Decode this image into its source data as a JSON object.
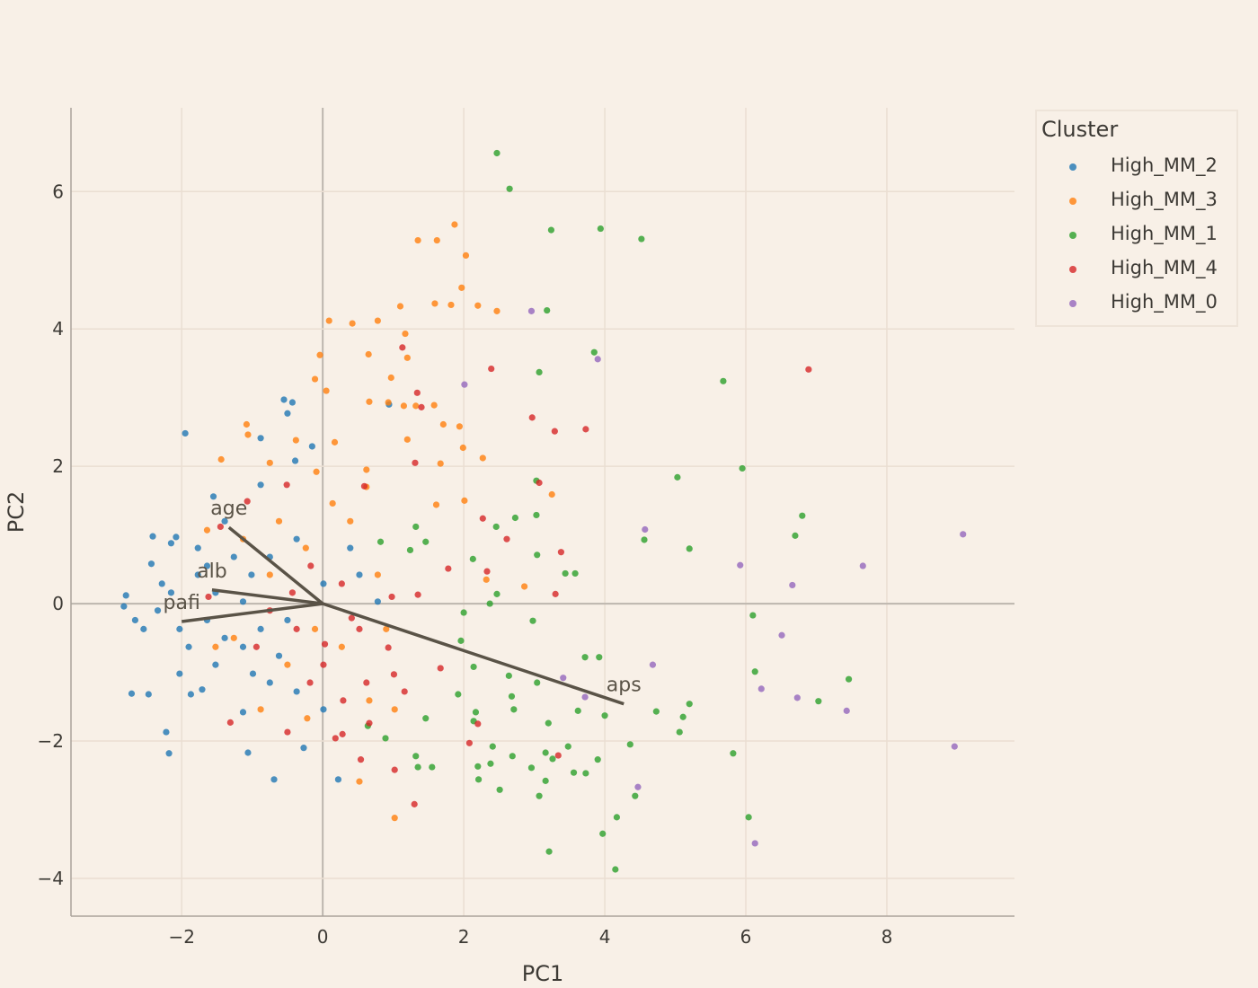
{
  "chart_data": {
    "type": "scatter",
    "xlabel": "PC1",
    "ylabel": "PC2",
    "xlim": [
      -3.57,
      9.81
    ],
    "ylim": [
      -4.55,
      7.22
    ],
    "xticks": [
      -2,
      0,
      2,
      4,
      6,
      8
    ],
    "yticks": [
      -4,
      -2,
      0,
      2,
      4,
      6
    ],
    "grid": true,
    "legend": {
      "title": "Cluster",
      "placement": "right"
    },
    "series": [
      {
        "name": "High_MM_2",
        "color": "#1f77b4",
        "points": [
          [
            -1.95,
            2.48
          ],
          [
            -0.88,
            2.41
          ],
          [
            -0.55,
            2.97
          ],
          [
            -0.43,
            2.93
          ],
          [
            -0.5,
            2.77
          ],
          [
            -0.15,
            2.29
          ],
          [
            -0.39,
            2.08
          ],
          [
            0.94,
            2.9
          ],
          [
            -1.55,
            1.56
          ],
          [
            -2.41,
            0.98
          ],
          [
            -2.08,
            0.97
          ],
          [
            -2.15,
            0.88
          ],
          [
            -2.43,
            0.58
          ],
          [
            -2.79,
            0.12
          ],
          [
            -2.82,
            -0.04
          ],
          [
            -2.71,
            -1.31
          ],
          [
            -2.47,
            -1.32
          ],
          [
            -2.22,
            -1.87
          ],
          [
            -2.18,
            -2.18
          ],
          [
            -1.06,
            -2.17
          ],
          [
            -0.69,
            -2.56
          ],
          [
            0.22,
            -2.56
          ],
          [
            -0.27,
            -2.1
          ],
          [
            -1.13,
            -1.58
          ],
          [
            -1.87,
            -1.32
          ],
          [
            -1.71,
            -1.25
          ],
          [
            -0.37,
            0.94
          ],
          [
            -0.88,
            1.73
          ],
          [
            -1.26,
            0.68
          ],
          [
            -1.77,
            0.42
          ],
          [
            -2.15,
            0.16
          ],
          [
            -2.34,
            -0.1
          ],
          [
            -2.03,
            -0.37
          ],
          [
            -1.64,
            -0.24
          ],
          [
            -1.39,
            -0.5
          ],
          [
            -1.13,
            0.03
          ],
          [
            -0.88,
            -0.37
          ],
          [
            -0.62,
            -0.76
          ],
          [
            -0.99,
            -1.02
          ],
          [
            -0.37,
            -1.28
          ],
          [
            0.01,
            -1.54
          ],
          [
            -1.52,
            -0.89
          ],
          [
            -1.9,
            -0.63
          ],
          [
            -2.54,
            -0.37
          ],
          [
            -2.28,
            0.29
          ],
          [
            -1.52,
            0.16
          ],
          [
            -0.75,
            0.68
          ],
          [
            -1.39,
            1.2
          ],
          [
            -1.77,
            0.81
          ],
          [
            -1.01,
            0.42
          ],
          [
            -0.5,
            -0.24
          ],
          [
            0.01,
            0.29
          ],
          [
            0.52,
            0.42
          ],
          [
            0.78,
            0.03
          ],
          [
            0.39,
            0.81
          ],
          [
            -1.13,
            -0.63
          ],
          [
            -2.03,
            -1.02
          ],
          [
            -2.66,
            -0.24
          ],
          [
            -1.64,
            0.55
          ],
          [
            -0.75,
            -1.15
          ]
        ]
      },
      {
        "name": "High_MM_3",
        "color": "#ff7f0e",
        "points": [
          [
            1.87,
            5.52
          ],
          [
            1.35,
            5.29
          ],
          [
            1.62,
            5.29
          ],
          [
            2.03,
            5.07
          ],
          [
            1.97,
            4.6
          ],
          [
            1.1,
            4.33
          ],
          [
            1.59,
            4.37
          ],
          [
            1.82,
            4.35
          ],
          [
            2.2,
            4.34
          ],
          [
            2.47,
            4.26
          ],
          [
            1.17,
            3.93
          ],
          [
            0.09,
            4.12
          ],
          [
            0.42,
            4.08
          ],
          [
            0.78,
            4.12
          ],
          [
            -0.04,
            3.62
          ],
          [
            0.65,
            3.63
          ],
          [
            1.2,
            3.58
          ],
          [
            0.97,
            3.29
          ],
          [
            -0.11,
            3.27
          ],
          [
            0.05,
            3.1
          ],
          [
            0.66,
            2.94
          ],
          [
            0.93,
            2.93
          ],
          [
            1.15,
            2.88
          ],
          [
            1.32,
            2.88
          ],
          [
            1.58,
            2.89
          ],
          [
            1.71,
            2.61
          ],
          [
            1.94,
            2.58
          ],
          [
            -1.08,
            2.61
          ],
          [
            -1.06,
            2.46
          ],
          [
            -1.44,
            2.1
          ],
          [
            1.2,
            2.39
          ],
          [
            1.99,
            2.27
          ],
          [
            2.27,
            2.12
          ],
          [
            1.67,
            2.04
          ],
          [
            0.17,
            2.35
          ],
          [
            0.62,
            1.95
          ],
          [
            -0.09,
            1.92
          ],
          [
            2.01,
            1.5
          ],
          [
            3.25,
            1.59
          ],
          [
            1.61,
            1.44
          ],
          [
            0.62,
            1.7
          ],
          [
            -0.75,
            2.05
          ],
          [
            -0.38,
            2.38
          ],
          [
            2.86,
            0.25
          ],
          [
            2.32,
            0.35
          ],
          [
            0.52,
            -2.59
          ],
          [
            1.02,
            -3.12
          ],
          [
            -0.22,
            -1.67
          ],
          [
            -0.88,
            -1.54
          ],
          [
            0.66,
            -1.41
          ],
          [
            1.02,
            -1.54
          ],
          [
            -0.5,
            -0.89
          ],
          [
            0.27,
            -0.63
          ],
          [
            -1.64,
            1.07
          ],
          [
            -1.13,
            0.94
          ],
          [
            -0.24,
            0.81
          ],
          [
            0.39,
            1.2
          ],
          [
            0.78,
            0.42
          ],
          [
            -0.75,
            0.42
          ],
          [
            -0.11,
            -0.37
          ],
          [
            -1.26,
            -0.5
          ],
          [
            0.14,
            1.46
          ],
          [
            -0.62,
            1.2
          ],
          [
            -1.52,
            -0.63
          ],
          [
            0.9,
            -0.37
          ]
        ]
      },
      {
        "name": "High_MM_1",
        "color": "#2ca02c",
        "points": [
          [
            2.47,
            6.56
          ],
          [
            2.65,
            6.04
          ],
          [
            3.24,
            5.44
          ],
          [
            3.94,
            5.46
          ],
          [
            4.52,
            5.31
          ],
          [
            3.18,
            4.27
          ],
          [
            3.85,
            3.66
          ],
          [
            3.07,
            3.37
          ],
          [
            5.68,
            3.24
          ],
          [
            5.95,
            1.97
          ],
          [
            5.03,
            1.84
          ],
          [
            3.03,
            1.79
          ],
          [
            6.8,
            1.28
          ],
          [
            2.73,
            1.25
          ],
          [
            3.03,
            1.29
          ],
          [
            2.46,
            1.12
          ],
          [
            6.7,
            0.99
          ],
          [
            4.56,
            0.93
          ],
          [
            5.2,
            0.8
          ],
          [
            3.04,
            0.71
          ],
          [
            3.58,
            0.44
          ],
          [
            3.44,
            0.44
          ],
          [
            2.47,
            0.14
          ],
          [
            6.1,
            -0.17
          ],
          [
            2.98,
            -0.25
          ],
          [
            2.0,
            -0.13
          ],
          [
            2.37,
            0
          ],
          [
            1.96,
            -0.54
          ],
          [
            3.92,
            -0.78
          ],
          [
            3.72,
            -0.78
          ],
          [
            6.13,
            -0.99
          ],
          [
            7.46,
            -1.1
          ],
          [
            2.64,
            -1.05
          ],
          [
            3.04,
            -1.15
          ],
          [
            2.68,
            -1.35
          ],
          [
            7.03,
            -1.42
          ],
          [
            5.2,
            -1.46
          ],
          [
            4.73,
            -1.57
          ],
          [
            5.11,
            -1.65
          ],
          [
            4.0,
            -1.63
          ],
          [
            2.71,
            -1.54
          ],
          [
            3.62,
            -1.56
          ],
          [
            5.06,
            -1.87
          ],
          [
            3.2,
            -1.74
          ],
          [
            2.14,
            -1.71
          ],
          [
            2.17,
            -1.58
          ],
          [
            3.48,
            -2.08
          ],
          [
            4.36,
            -2.05
          ],
          [
            2.41,
            -2.08
          ],
          [
            3.16,
            -2.17
          ],
          [
            3.26,
            -2.26
          ],
          [
            3.9,
            -2.27
          ],
          [
            5.82,
            -2.18
          ],
          [
            2.69,
            -2.22
          ],
          [
            2.2,
            -2.37
          ],
          [
            2.38,
            -2.33
          ],
          [
            2.96,
            -2.39
          ],
          [
            3.56,
            -2.46
          ],
          [
            3.73,
            -2.47
          ],
          [
            2.21,
            -2.56
          ],
          [
            3.16,
            -2.58
          ],
          [
            2.51,
            -2.71
          ],
          [
            3.07,
            -2.8
          ],
          [
            4.43,
            -2.8
          ],
          [
            4.17,
            -3.11
          ],
          [
            6.04,
            -3.11
          ],
          [
            3.97,
            -3.35
          ],
          [
            3.21,
            -3.61
          ],
          [
            4.15,
            -3.87
          ],
          [
            1.32,
            1.12
          ],
          [
            1.24,
            0.78
          ],
          [
            2.13,
            0.65
          ],
          [
            1.46,
            0.9
          ],
          [
            0.82,
            0.9
          ],
          [
            2.14,
            -0.92
          ],
          [
            1.92,
            -1.32
          ],
          [
            1.32,
            -2.22
          ],
          [
            1.55,
            -2.38
          ],
          [
            1.35,
            -2.38
          ],
          [
            0.89,
            -1.96
          ],
          [
            0.64,
            -1.78
          ],
          [
            1.46,
            -1.67
          ]
        ]
      },
      {
        "name": "High_MM_4",
        "color": "#d62728",
        "points": [
          [
            6.89,
            3.41
          ],
          [
            1.13,
            3.73
          ],
          [
            2.39,
            3.42
          ],
          [
            1.34,
            3.07
          ],
          [
            2.97,
            2.71
          ],
          [
            3.73,
            2.54
          ],
          [
            3.29,
            2.51
          ],
          [
            1.4,
            2.86
          ],
          [
            1.31,
            2.05
          ],
          [
            3.07,
            1.76
          ],
          [
            0.59,
            1.71
          ],
          [
            2.27,
            1.24
          ],
          [
            2.61,
            0.94
          ],
          [
            3.38,
            0.75
          ],
          [
            1.78,
            0.51
          ],
          [
            2.33,
            0.47
          ],
          [
            3.3,
            0.14
          ],
          [
            1.35,
            0.13
          ],
          [
            0.98,
            0.1
          ],
          [
            0.41,
            -0.21
          ],
          [
            0.93,
            -0.64
          ],
          [
            1.67,
            -0.94
          ],
          [
            0.03,
            -0.59
          ],
          [
            1.01,
            -1.03
          ],
          [
            0.29,
            -1.41
          ],
          [
            0.66,
            -1.74
          ],
          [
            0.28,
            -1.9
          ],
          [
            -1.31,
            -1.73
          ],
          [
            -0.5,
            -1.87
          ],
          [
            0.18,
            -1.96
          ],
          [
            0.54,
            -2.27
          ],
          [
            1.02,
            -2.42
          ],
          [
            1.3,
            -2.92
          ],
          [
            2.08,
            -2.03
          ],
          [
            3.34,
            -2.21
          ],
          [
            2.2,
            -1.75
          ],
          [
            -1.07,
            1.49
          ],
          [
            -0.51,
            1.73
          ],
          [
            -1.45,
            1.12
          ],
          [
            -0.17,
            0.55
          ],
          [
            -0.43,
            0.16
          ],
          [
            -0.75,
            -0.1
          ],
          [
            -1.62,
            0.1
          ],
          [
            -0.37,
            -0.37
          ],
          [
            0.01,
            -0.89
          ],
          [
            0.62,
            -1.15
          ],
          [
            1.16,
            -1.28
          ],
          [
            -0.18,
            -1.15
          ],
          [
            -0.94,
            -0.63
          ],
          [
            0.27,
            0.29
          ],
          [
            0.52,
            -0.37
          ]
        ]
      },
      {
        "name": "High_MM_0",
        "color": "#9467bd",
        "points": [
          [
            2.96,
            4.26
          ],
          [
            3.9,
            3.56
          ],
          [
            2.01,
            3.19
          ],
          [
            4.57,
            1.08
          ],
          [
            9.08,
            1.01
          ],
          [
            5.92,
            0.56
          ],
          [
            7.66,
            0.55
          ],
          [
            6.66,
            0.27
          ],
          [
            6.51,
            -0.46
          ],
          [
            4.68,
            -0.89
          ],
          [
            3.41,
            -1.08
          ],
          [
            6.22,
            -1.24
          ],
          [
            3.72,
            -1.36
          ],
          [
            6.73,
            -1.37
          ],
          [
            7.43,
            -1.56
          ],
          [
            8.96,
            -2.08
          ],
          [
            4.47,
            -2.67
          ],
          [
            6.13,
            -3.49
          ]
        ]
      }
    ],
    "loadings": [
      {
        "label": "age",
        "x": -1.33,
        "y": 1.11
      },
      {
        "label": "alb",
        "x": -1.57,
        "y": 0.2
      },
      {
        "label": "pafi",
        "x": -2.0,
        "y": -0.26
      },
      {
        "label": "aps",
        "x": 4.27,
        "y": -1.46
      }
    ],
    "loading_color": "#5a5347"
  }
}
